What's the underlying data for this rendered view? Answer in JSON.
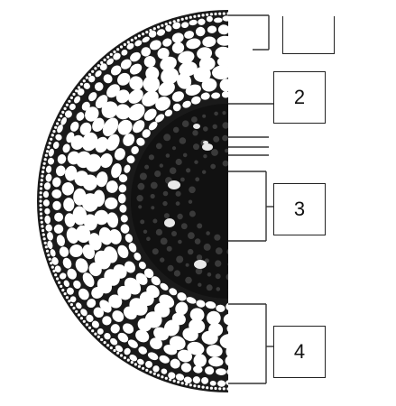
{
  "labels": {
    "top": "",
    "two": "2",
    "three": "3",
    "four": "4"
  },
  "colors": {
    "tissue_dark": "#1a1a1a",
    "cell_fill": "#ffffff",
    "line": "#333333"
  }
}
